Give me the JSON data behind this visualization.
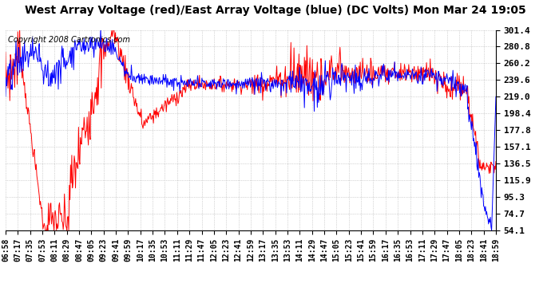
{
  "title": "West Array Voltage (red)/East Array Voltage (blue) (DC Volts) Mon Mar 24 19:05",
  "copyright": "Copyright 2008 Cartronics.com",
  "yticks": [
    54.1,
    74.7,
    95.3,
    115.9,
    136.5,
    157.1,
    177.8,
    198.4,
    219.0,
    239.6,
    260.2,
    280.8,
    301.4
  ],
  "ymin": 54.1,
  "ymax": 301.4,
  "background_color": "#ffffff",
  "plot_bg_color": "#ffffff",
  "grid_color": "#b0b0b0",
  "red_color": "#ff0000",
  "blue_color": "#0000ff",
  "title_fontsize": 10,
  "copyright_fontsize": 7,
  "tick_fontsize": 8,
  "xtick_labels": [
    "06:58",
    "07:17",
    "07:35",
    "07:53",
    "08:11",
    "08:29",
    "08:47",
    "09:05",
    "09:23",
    "09:41",
    "09:59",
    "10:17",
    "10:35",
    "10:53",
    "11:11",
    "11:29",
    "11:47",
    "12:05",
    "12:23",
    "12:41",
    "12:59",
    "13:17",
    "13:35",
    "13:53",
    "14:11",
    "14:29",
    "14:47",
    "15:05",
    "15:23",
    "15:41",
    "15:59",
    "16:17",
    "16:35",
    "16:53",
    "17:11",
    "17:29",
    "17:47",
    "18:05",
    "18:23",
    "18:41",
    "18:59"
  ]
}
